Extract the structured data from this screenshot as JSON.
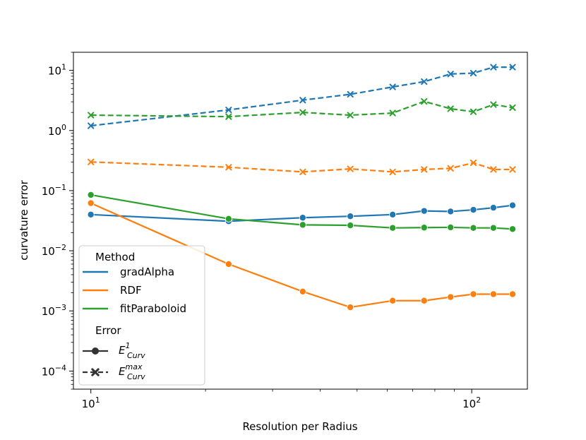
{
  "chart_data": {
    "type": "line",
    "xscale": "log",
    "yscale": "log",
    "xlabel": "Resolution per Radius",
    "ylabel": "curvature error",
    "xlim": [
      9.0,
      140
    ],
    "ylim": [
      5e-05,
      20
    ],
    "x": [
      10,
      23,
      36,
      48,
      62,
      75,
      88,
      101,
      114,
      128
    ],
    "x_ticks": [
      {
        "value": 10,
        "base": "10",
        "exp": "1"
      },
      {
        "value": 100,
        "base": "10",
        "exp": "2"
      }
    ],
    "y_ticks": [
      {
        "value": 0.0001,
        "base": "10",
        "exp": "−4"
      },
      {
        "value": 0.001,
        "base": "10",
        "exp": "−3"
      },
      {
        "value": 0.01,
        "base": "10",
        "exp": "−2"
      },
      {
        "value": 0.1,
        "base": "10",
        "exp": "−1"
      },
      {
        "value": 1,
        "base": "10",
        "exp": "0"
      },
      {
        "value": 10,
        "base": "10",
        "exp": "1"
      }
    ],
    "series": [
      {
        "name": "gradAlpha",
        "error": "E1",
        "color": "#1f77b4",
        "marker": "circle",
        "dash": false,
        "values": [
          0.04,
          0.031,
          0.0355,
          0.0375,
          0.04,
          0.046,
          0.045,
          0.048,
          0.052,
          0.057
        ]
      },
      {
        "name": "RDF",
        "error": "E1",
        "color": "#ff7f0e",
        "marker": "circle",
        "dash": false,
        "values": [
          0.062,
          0.006,
          0.0021,
          0.00115,
          0.00148,
          0.00148,
          0.0017,
          0.0019,
          0.0019,
          0.0019
        ]
      },
      {
        "name": "fitParaboloid",
        "error": "E1",
        "color": "#2ca02c",
        "marker": "circle",
        "dash": false,
        "values": [
          0.085,
          0.034,
          0.027,
          0.0265,
          0.024,
          0.0243,
          0.0245,
          0.024,
          0.024,
          0.023
        ]
      },
      {
        "name": "gradAlpha",
        "error": "Emax",
        "color": "#1f77b4",
        "marker": "x",
        "dash": true,
        "values": [
          1.2,
          2.2,
          3.2,
          4.0,
          5.3,
          6.5,
          8.7,
          9.0,
          11.3,
          11.3
        ]
      },
      {
        "name": "RDF",
        "error": "Emax",
        "color": "#ff7f0e",
        "marker": "x",
        "dash": true,
        "values": [
          0.3,
          0.245,
          0.205,
          0.23,
          0.205,
          0.225,
          0.235,
          0.29,
          0.225,
          0.225
        ]
      },
      {
        "name": "fitParaboloid",
        "error": "Emax",
        "color": "#2ca02c",
        "marker": "x",
        "dash": true,
        "values": [
          1.8,
          1.7,
          2.0,
          1.8,
          1.95,
          3.05,
          2.3,
          2.05,
          2.7,
          2.4
        ]
      }
    ],
    "legend": {
      "position": "lower-left",
      "method_title": "Method",
      "methods": [
        {
          "label": "gradAlpha",
          "color": "#1f77b4"
        },
        {
          "label": "RDF",
          "color": "#ff7f0e"
        },
        {
          "label": "fitParaboloid",
          "color": "#2ca02c"
        }
      ],
      "error_title": "Error",
      "errors": [
        {
          "base": "E",
          "sup": "1",
          "sub": "Curv",
          "marker": "circle",
          "dash": false
        },
        {
          "base": "E",
          "sup": "max",
          "sub": "Curv",
          "marker": "x",
          "dash": true
        }
      ]
    }
  }
}
